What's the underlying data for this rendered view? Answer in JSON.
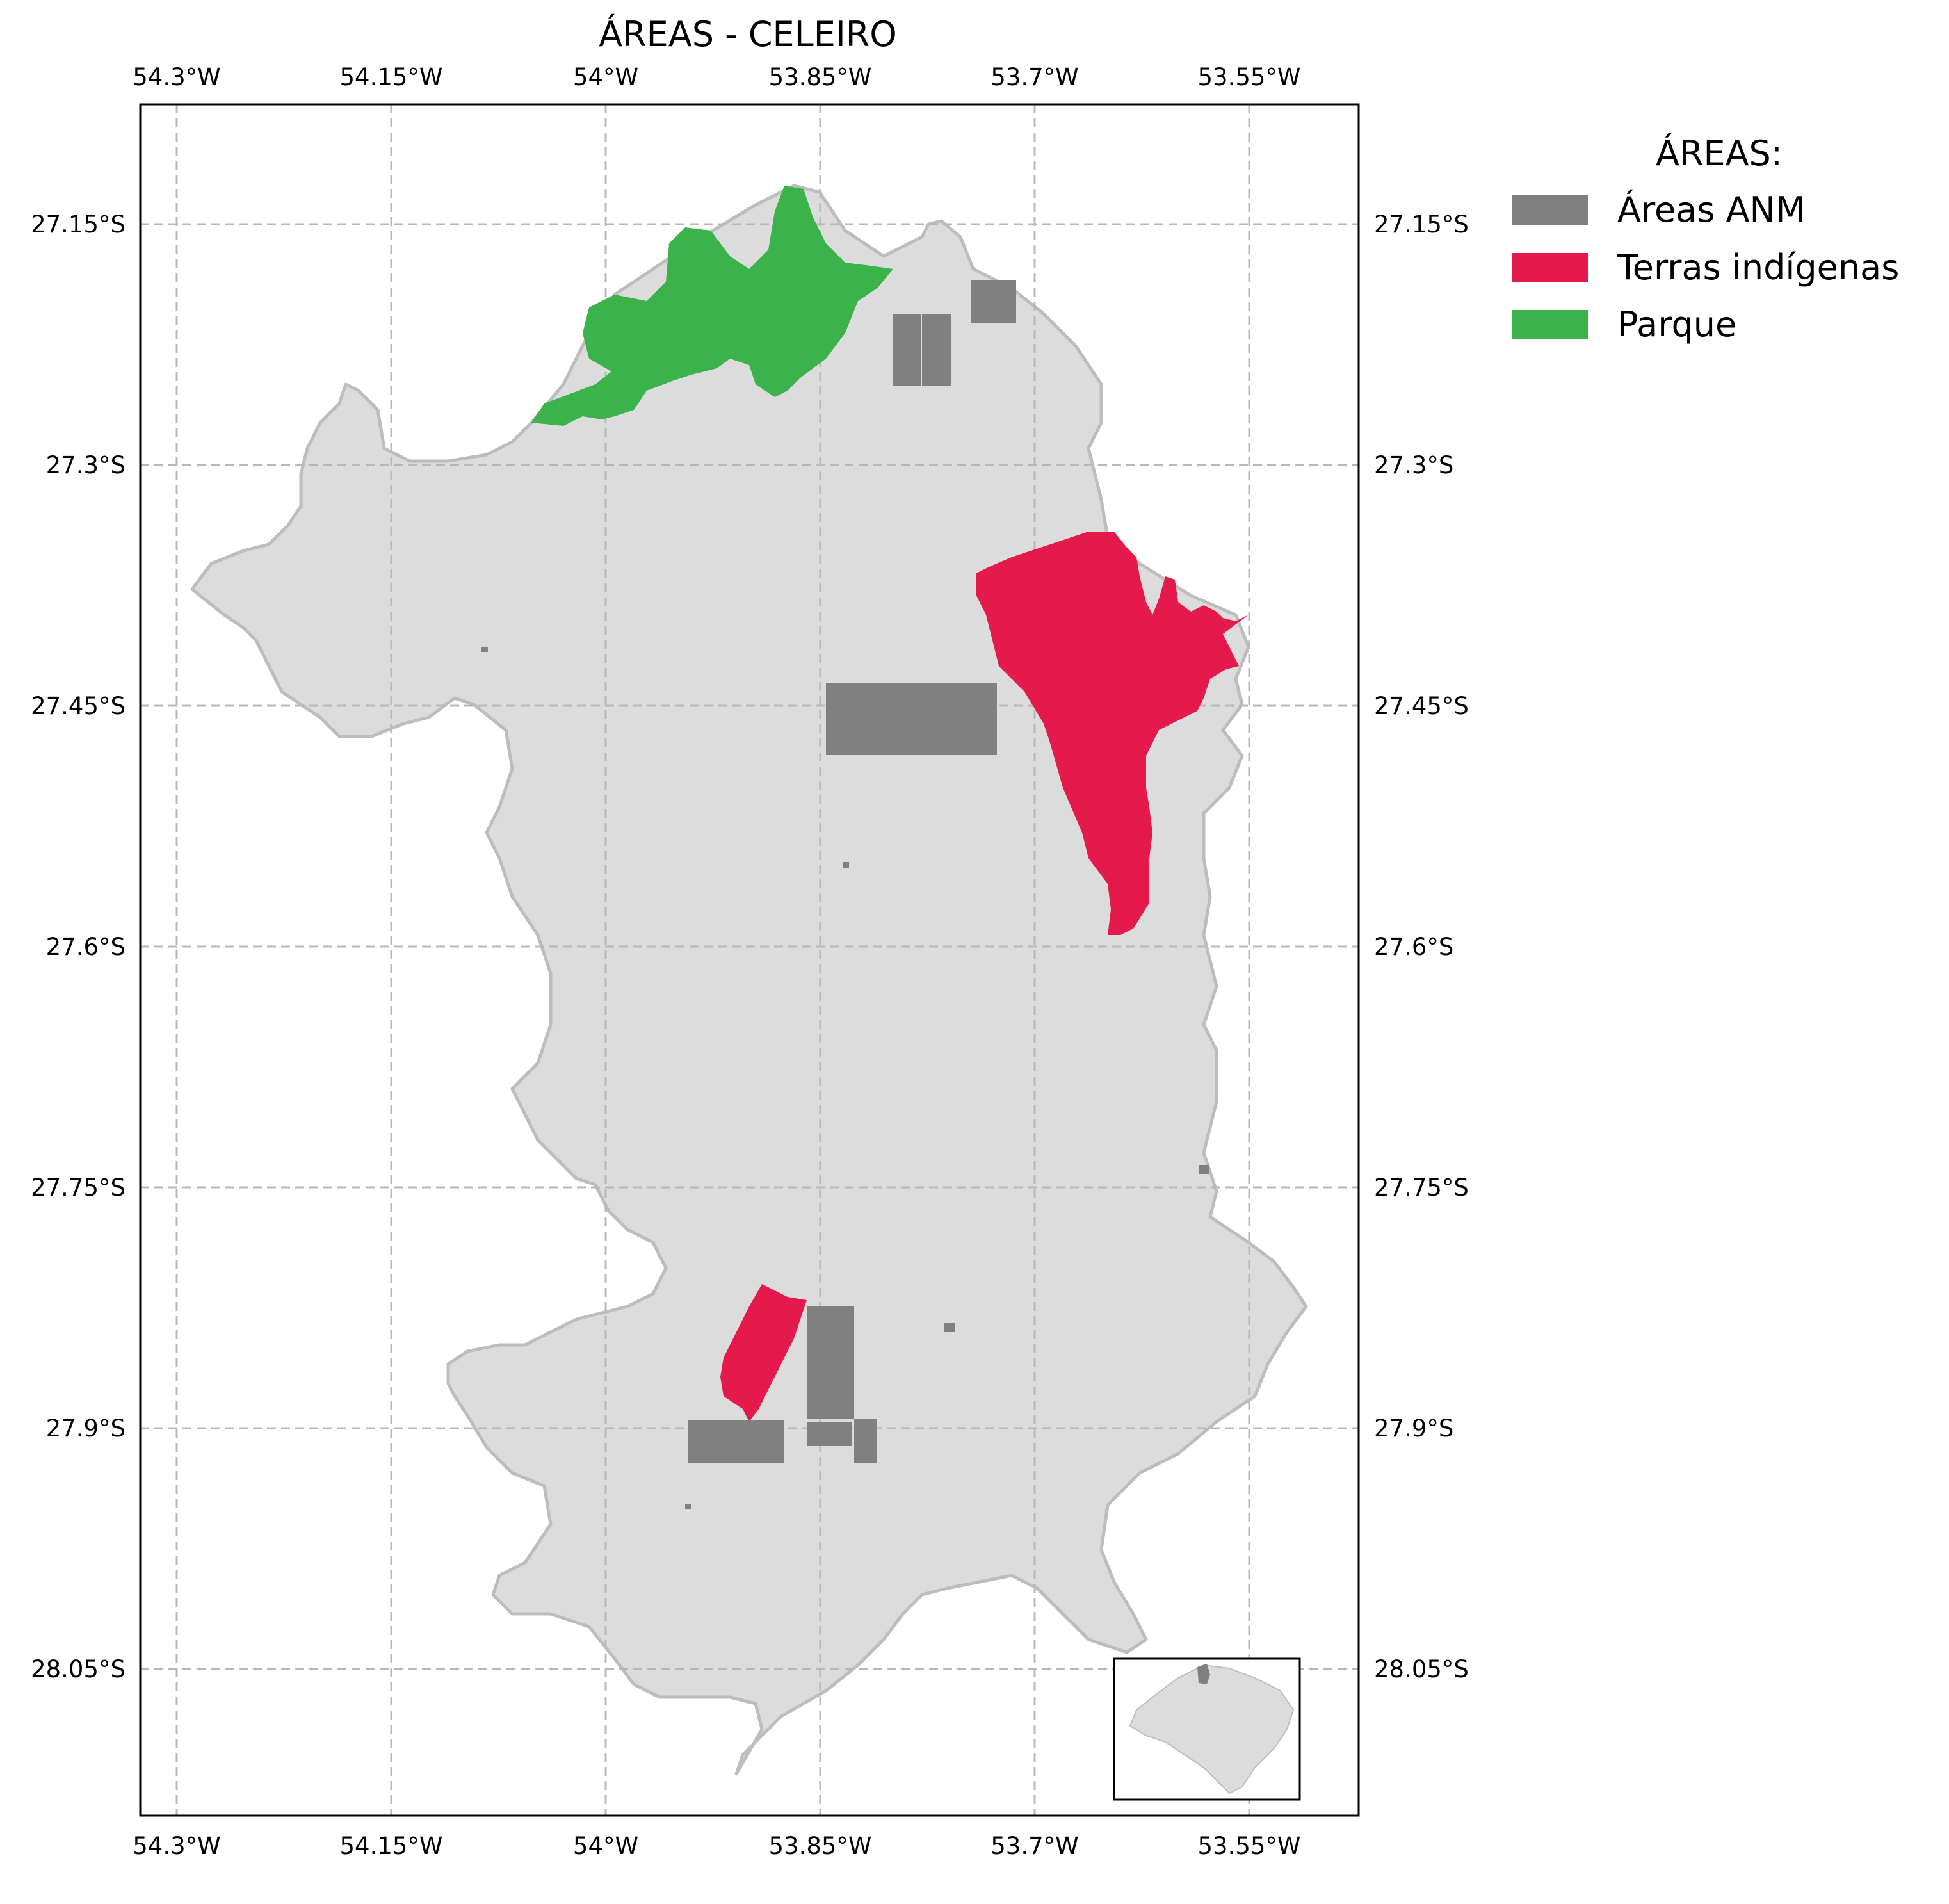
{
  "title": "ÁREAS - CELEIRO",
  "axes": {
    "lon_ticks": [
      "54.3°W",
      "54.15°W",
      "54°W",
      "53.85°W",
      "53.7°W",
      "53.55°W"
    ],
    "lat_ticks": [
      "27.15°S",
      "27.3°S",
      "27.45°S",
      "27.6°S",
      "27.75°S",
      "27.9°S",
      "28.05°S"
    ]
  },
  "legend": {
    "title": "ÁREAS:",
    "items": [
      {
        "label": "Áreas ANM",
        "color": "#808080"
      },
      {
        "label": "Terras indígenas",
        "color": "#e31a4b"
      },
      {
        "label": "Parque",
        "color": "#3cb24b"
      }
    ]
  },
  "colors": {
    "region_fill": "#dcdcdc",
    "region_stroke": "#bdbdbd",
    "anm": "#808080",
    "indigenous": "#e31a4b",
    "park": "#3cb24b",
    "grid": "#b8b8b8"
  },
  "map_features": {
    "region": "Celeiro",
    "inset": "locator-map"
  }
}
